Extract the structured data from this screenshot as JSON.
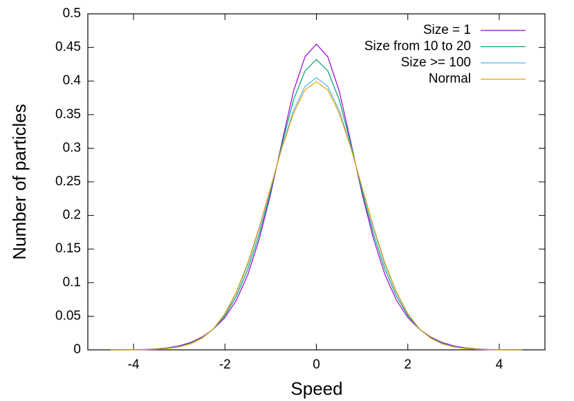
{
  "chart_data": {
    "type": "line",
    "xlabel": "Speed",
    "ylabel": "Number of particles",
    "x": [
      -4.5,
      -4.25,
      -4,
      -3.75,
      -3.5,
      -3.25,
      -3,
      -2.75,
      -2.5,
      -2.25,
      -2,
      -1.75,
      -1.5,
      -1.25,
      -1,
      -0.75,
      -0.5,
      -0.25,
      0,
      0.25,
      0.5,
      0.75,
      1,
      1.25,
      1.5,
      1.75,
      2,
      2.25,
      2.5,
      2.75,
      3,
      3.25,
      3.5,
      3.75,
      4,
      4.25,
      4.5
    ],
    "series": [
      {
        "name": "Size = 1",
        "color": "#9400d3",
        "values": [
          0,
          0.0001,
          0.0003,
          0.0007,
          0.0015,
          0.003,
          0.006,
          0.011,
          0.019,
          0.031,
          0.048,
          0.074,
          0.112,
          0.165,
          0.232,
          0.31,
          0.385,
          0.436,
          0.455,
          0.436,
          0.385,
          0.31,
          0.232,
          0.165,
          0.112,
          0.074,
          0.048,
          0.031,
          0.019,
          0.011,
          0.006,
          0.003,
          0.0015,
          0.0007,
          0.0003,
          0.0001,
          0
        ]
      },
      {
        "name": "Size from 10 to 20",
        "color": "#009e73",
        "values": [
          0,
          0.0001,
          0.0002,
          0.0005,
          0.0012,
          0.0025,
          0.005,
          0.01,
          0.018,
          0.031,
          0.051,
          0.08,
          0.12,
          0.172,
          0.236,
          0.307,
          0.372,
          0.415,
          0.432,
          0.415,
          0.372,
          0.307,
          0.236,
          0.172,
          0.12,
          0.08,
          0.051,
          0.031,
          0.018,
          0.01,
          0.005,
          0.0025,
          0.0012,
          0.0005,
          0.0002,
          0.0001,
          0
        ]
      },
      {
        "name": "Size >= 100",
        "color": "#56b4e9",
        "values": [
          0,
          0,
          0.0001,
          0.0004,
          0.0009,
          0.002,
          0.0045,
          0.009,
          0.0175,
          0.031,
          0.053,
          0.085,
          0.127,
          0.18,
          0.241,
          0.303,
          0.356,
          0.392,
          0.405,
          0.392,
          0.356,
          0.303,
          0.241,
          0.18,
          0.127,
          0.085,
          0.053,
          0.031,
          0.0175,
          0.009,
          0.0045,
          0.002,
          0.0009,
          0.0004,
          0.0001,
          0,
          0
        ]
      },
      {
        "name": "Normal",
        "color": "#e69f00",
        "values": [
          0,
          0,
          0.0001,
          0.0004,
          0.0009,
          0.002,
          0.0044,
          0.0091,
          0.0175,
          0.0317,
          0.054,
          0.0863,
          0.1295,
          0.1826,
          0.242,
          0.3011,
          0.3521,
          0.3867,
          0.399,
          0.3867,
          0.3521,
          0.3011,
          0.242,
          0.1826,
          0.1295,
          0.0863,
          0.054,
          0.0317,
          0.0175,
          0.0091,
          0.0044,
          0.002,
          0.0009,
          0.0004,
          0.0001,
          0,
          0
        ]
      }
    ],
    "xlim": [
      -5,
      5
    ],
    "xticks": [
      -4,
      -2,
      0,
      2,
      4
    ],
    "ylim": [
      0,
      0.5
    ],
    "yticks": [
      0,
      0.05,
      0.1,
      0.15,
      0.2,
      0.25,
      0.3,
      0.35,
      0.4,
      0.45,
      0.5
    ],
    "grid": false,
    "legend": "top-right"
  }
}
